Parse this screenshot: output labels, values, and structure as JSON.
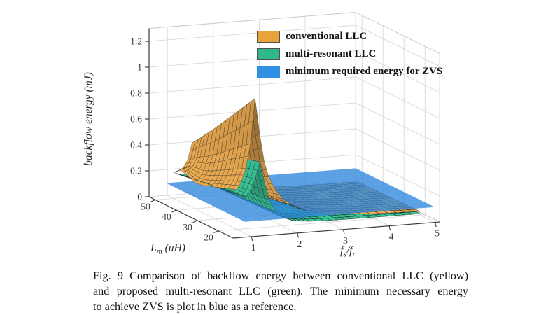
{
  "page": {
    "background": "#ffffff"
  },
  "chart_data": {
    "type": "surface",
    "title": "",
    "xlabel": "f_s/f_r",
    "ylabel": "L_m (uH)",
    "zlabel": "backflow energy (mJ)",
    "x_ticks": [
      1,
      2,
      3,
      4,
      5
    ],
    "y_ticks": [
      50,
      40,
      30,
      20
    ],
    "z_ticks": [
      0,
      0.2,
      0.4,
      0.6,
      0.8,
      1,
      1.2
    ],
    "x_axis_range": [
      0.6,
      5.1
    ],
    "y_axis_range": [
      13,
      53
    ],
    "z_axis_range": [
      0,
      1.3
    ],
    "grid": true,
    "legend_position": "top-center",
    "legend": [
      {
        "label": "conventional LLC",
        "color": "#E8A33C",
        "border": "#55514a"
      },
      {
        "label": "multi-resonant LLC",
        "color": "#2FB98B",
        "border": "#55514a"
      },
      {
        "label": "minimum required energy for ZVS",
        "color": "#3090E2",
        "border": "#3090E2"
      }
    ],
    "fs_values": [
      1,
      1.1,
      1.2,
      1.3,
      1.4,
      1.5,
      1.6,
      1.7,
      1.85,
      2,
      2.2,
      2.4,
      2.6,
      2.9,
      3.2,
      3.5,
      3.9,
      4.3,
      4.65,
      5
    ],
    "lm_values": [
      20,
      24,
      28,
      32,
      36,
      40,
      44,
      47,
      50
    ],
    "series": [
      {
        "name": "conventional LLC",
        "kind": "surface",
        "color": "#F2B055",
        "z": [
          [
            0.307,
            0.366,
            0.465,
            0.654,
            1.0,
            0.723,
            0.505,
            0.386,
            0.277,
            0.208,
            0.154,
            0.119,
            0.094,
            0.071,
            0.058,
            0.048,
            0.04,
            0.035,
            0.032,
            0.029
          ],
          [
            0.283,
            0.338,
            0.429,
            0.602,
            0.92,
            0.665,
            0.465,
            0.356,
            0.256,
            0.192,
            0.142,
            0.11,
            0.087,
            0.066,
            0.054,
            0.045,
            0.037,
            0.033,
            0.03,
            0.027
          ],
          [
            0.259,
            0.309,
            0.392,
            0.55,
            0.84,
            0.608,
            0.425,
            0.325,
            0.234,
            0.176,
            0.13,
            0.101,
            0.081,
            0.061,
            0.05,
            0.042,
            0.035,
            0.031,
            0.028,
            0.026
          ],
          [
            0.235,
            0.28,
            0.355,
            0.498,
            0.76,
            0.55,
            0.385,
            0.295,
            0.213,
            0.16,
            0.119,
            0.093,
            0.074,
            0.057,
            0.046,
            0.039,
            0.033,
            0.029,
            0.027,
            0.024
          ],
          [
            0.211,
            0.251,
            0.318,
            0.446,
            0.68,
            0.492,
            0.345,
            0.265,
            0.191,
            0.144,
            0.107,
            0.084,
            0.067,
            0.052,
            0.042,
            0.035,
            0.03,
            0.027,
            0.025,
            0.023
          ],
          [
            0.201,
            0.233,
            0.288,
            0.398,
            0.601,
            0.435,
            0.305,
            0.234,
            0.169,
            0.128,
            0.096,
            0.075,
            0.06,
            0.047,
            0.038,
            0.032,
            0.028,
            0.025,
            0.023,
            0.021
          ],
          [
            0.233,
            0.25,
            0.28,
            0.359,
            0.527,
            0.377,
            0.265,
            0.204,
            0.148,
            0.112,
            0.084,
            0.066,
            0.053,
            0.042,
            0.034,
            0.029,
            0.025,
            0.023,
            0.021,
            0.02
          ],
          [
            0.245,
            0.252,
            0.267,
            0.328,
            0.47,
            0.334,
            0.235,
            0.181,
            0.132,
            0.1,
            0.075,
            0.06,
            0.048,
            0.038,
            0.032,
            0.027,
            0.024,
            0.021,
            0.02,
            0.019
          ],
          [
            0.2,
            0.21,
            0.229,
            0.288,
            0.417,
            0.298,
            0.21,
            0.162,
            0.118,
            0.09,
            0.068,
            0.054,
            0.044,
            0.035,
            0.029,
            0.025,
            0.022,
            0.02,
            0.019,
            0.018
          ]
        ]
      },
      {
        "name": "multi-resonant LLC",
        "kind": "surface",
        "color": "#3CC79A",
        "z": [
          [
            0.283,
            0.258,
            0.248,
            0.288,
            0.378,
            0.508,
            0.358,
            0.208,
            0.113,
            0.066,
            0.037,
            0.025,
            0.019,
            0.015,
            0.013,
            0.012,
            0.012,
            0.011,
            0.011,
            0.011
          ],
          [
            0.272,
            0.248,
            0.238,
            0.277,
            0.363,
            0.488,
            0.344,
            0.2,
            0.109,
            0.063,
            0.036,
            0.024,
            0.019,
            0.015,
            0.013,
            0.012,
            0.011,
            0.011,
            0.011,
            0.01
          ],
          [
            0.261,
            0.238,
            0.229,
            0.266,
            0.348,
            0.468,
            0.33,
            0.192,
            0.105,
            0.061,
            0.035,
            0.024,
            0.018,
            0.014,
            0.013,
            0.012,
            0.011,
            0.011,
            0.011,
            0.01
          ],
          [
            0.25,
            0.228,
            0.219,
            0.254,
            0.334,
            0.448,
            0.316,
            0.184,
            0.1,
            0.059,
            0.034,
            0.023,
            0.018,
            0.014,
            0.012,
            0.012,
            0.011,
            0.011,
            0.011,
            0.01
          ],
          [
            0.239,
            0.218,
            0.21,
            0.243,
            0.319,
            0.428,
            0.302,
            0.176,
            0.096,
            0.056,
            0.032,
            0.022,
            0.017,
            0.014,
            0.012,
            0.011,
            0.011,
            0.011,
            0.011,
            0.01
          ],
          [
            0.228,
            0.208,
            0.2,
            0.232,
            0.304,
            0.408,
            0.288,
            0.168,
            0.092,
            0.054,
            0.031,
            0.022,
            0.017,
            0.014,
            0.012,
            0.011,
            0.011,
            0.01,
            0.01,
            0.01
          ],
          [
            0.217,
            0.198,
            0.19,
            0.221,
            0.289,
            0.388,
            0.274,
            0.16,
            0.088,
            0.052,
            0.03,
            0.021,
            0.016,
            0.013,
            0.012,
            0.011,
            0.011,
            0.01,
            0.01,
            0.01
          ],
          [
            0.209,
            0.191,
            0.183,
            0.212,
            0.278,
            0.373,
            0.264,
            0.154,
            0.085,
            0.05,
            0.029,
            0.02,
            0.016,
            0.013,
            0.012,
            0.011,
            0.011,
            0.01,
            0.01,
            0.01
          ],
          [
            0.201,
            0.183,
            0.176,
            0.204,
            0.267,
            0.358,
            0.253,
            0.148,
            0.082,
            0.048,
            0.028,
            0.02,
            0.016,
            0.013,
            0.012,
            0.011,
            0.01,
            0.01,
            0.01,
            0.01
          ]
        ]
      },
      {
        "name": "minimum required energy for ZVS",
        "kind": "plane",
        "z_value": 0.1,
        "color": "#2E86DC",
        "opacity": 0.78,
        "extent_fs": [
          0.95,
          5.08
        ],
        "extent_lm": [
          15,
          52.5
        ]
      }
    ]
  },
  "caption": {
    "lines": [
      "Fig. 9 Comparison of backflow energy between conventional LLC (yellow)",
      "and proposed multi-resonant LLC (green). The minimum necessary energy",
      "to achieve ZVS is plot in blue as a reference."
    ]
  }
}
